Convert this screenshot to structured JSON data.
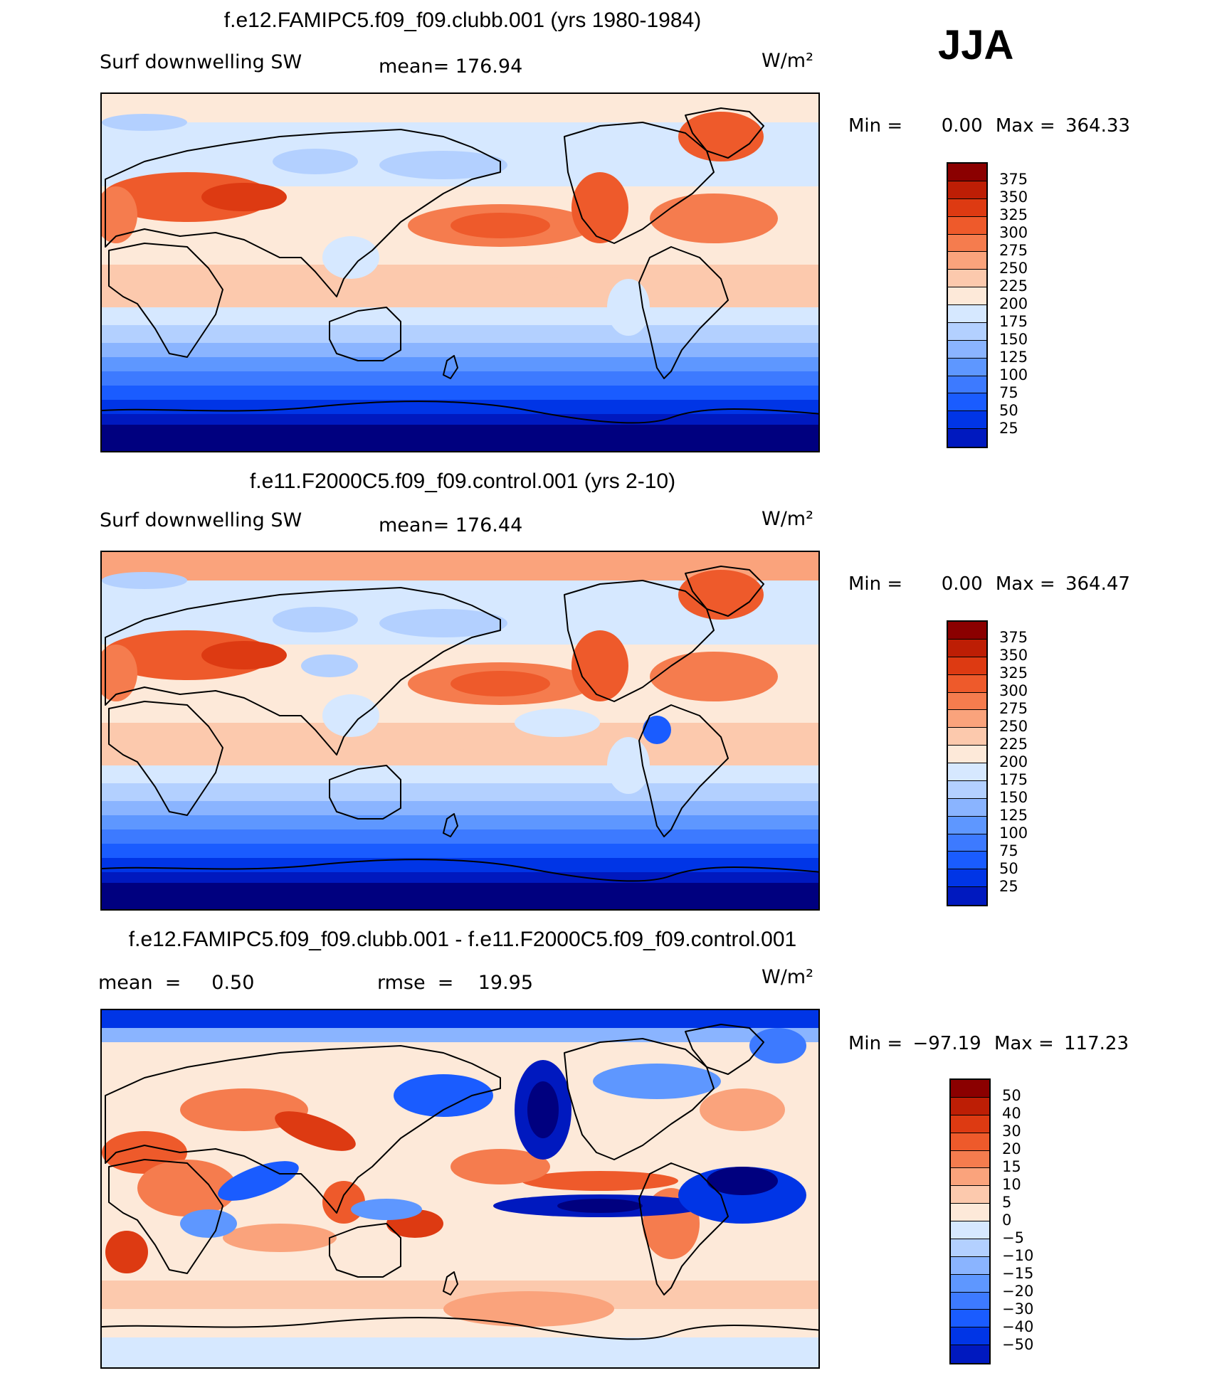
{
  "season": "JJA",
  "colors": {
    "abs": [
      "#00007f",
      "#0019bf",
      "#0035e6",
      "#1a5cff",
      "#3d7aff",
      "#5e97ff",
      "#8ab4ff",
      "#b3d0ff",
      "#d6e8ff",
      "#fde9d9",
      "#fcc9ad",
      "#faa37c",
      "#f57c4e",
      "#ee5a2b",
      "#dd3a12",
      "#bd1e05",
      "#8b0000"
    ],
    "diff": [
      "#00007f",
      "#0019bf",
      "#0035e6",
      "#1a5cff",
      "#3d7aff",
      "#5e97ff",
      "#8ab4ff",
      "#b3d0ff",
      "#d6e8ff",
      "#fde9d9",
      "#fcc9ad",
      "#faa37c",
      "#f57c4e",
      "#ee5a2b",
      "#dd3a12",
      "#bd1e05",
      "#8b0000"
    ],
    "coast": "#000000"
  },
  "panels": [
    {
      "title": "f.e12.FAMIPC5.f09_f09.clubb.001 (yrs 1980-1984)",
      "left_label": "Surf  downwelling  SW",
      "mean_label": "mean=  176.94",
      "units": "W/m²",
      "min_label": "Min  =",
      "min_value": "0.00",
      "max_label": "Max  =",
      "max_value": "364.33",
      "colorbar_ticks": [
        "375",
        "350",
        "325",
        "300",
        "275",
        "250",
        "225",
        "200",
        "175",
        "150",
        "125",
        "100",
        "75",
        "50",
        "25"
      ]
    },
    {
      "title": "f.e11.F2000C5.f09_f09.control.001 (yrs 2-10)",
      "left_label": "Surf  downwelling  SW",
      "mean_label": "mean=  176.44",
      "units": "W/m²",
      "min_label": "Min  =",
      "min_value": "0.00",
      "max_label": "Max  =",
      "max_value": "364.47",
      "colorbar_ticks": [
        "375",
        "350",
        "325",
        "300",
        "275",
        "250",
        "225",
        "200",
        "175",
        "150",
        "125",
        "100",
        "75",
        "50",
        "25"
      ]
    },
    {
      "title": "f.e12.FAMIPC5.f09_f09.clubb.001 - f.e11.F2000C5.f09_f09.control.001",
      "left_label": "mean  =     0.50",
      "mean_label": "rmse  =    19.95",
      "units": "W/m²",
      "min_label": "Min  =",
      "min_value": "−97.19",
      "max_label": "Max  =",
      "max_value": "117.23",
      "colorbar_ticks": [
        "50",
        "40",
        "30",
        "20",
        "15",
        "10",
        "5",
        "0",
        "−5",
        "−10",
        "−15",
        "−20",
        "−30",
        "−40",
        "−50"
      ]
    }
  ],
  "chart_data": [
    {
      "type": "heatmap",
      "title": "f.e12.FAMIPC5.f09_f09.clubb.001 (yrs 1980-1984)",
      "variable": "Surf downwelling SW",
      "units": "W/m2",
      "season": "JJA",
      "mean": 176.94,
      "min": 0.0,
      "max": 364.33,
      "levels": [
        25,
        50,
        75,
        100,
        125,
        150,
        175,
        200,
        225,
        250,
        275,
        300,
        325,
        350,
        375
      ]
    },
    {
      "type": "heatmap",
      "title": "f.e11.F2000C5.f09_f09.control.001 (yrs 2-10)",
      "variable": "Surf downwelling SW",
      "units": "W/m2",
      "season": "JJA",
      "mean": 176.44,
      "min": 0.0,
      "max": 364.47,
      "levels": [
        25,
        50,
        75,
        100,
        125,
        150,
        175,
        200,
        225,
        250,
        275,
        300,
        325,
        350,
        375
      ]
    },
    {
      "type": "heatmap",
      "title": "f.e12.FAMIPC5.f09_f09.clubb.001 - f.e11.F2000C5.f09_f09.control.001",
      "variable": "Surf downwelling SW difference",
      "units": "W/m2",
      "season": "JJA",
      "mean": 0.5,
      "rmse": 19.95,
      "min": -97.19,
      "max": 117.23,
      "levels": [
        -50,
        -40,
        -30,
        -20,
        -15,
        -10,
        -5,
        0,
        5,
        10,
        15,
        20,
        30,
        40,
        50
      ]
    }
  ]
}
